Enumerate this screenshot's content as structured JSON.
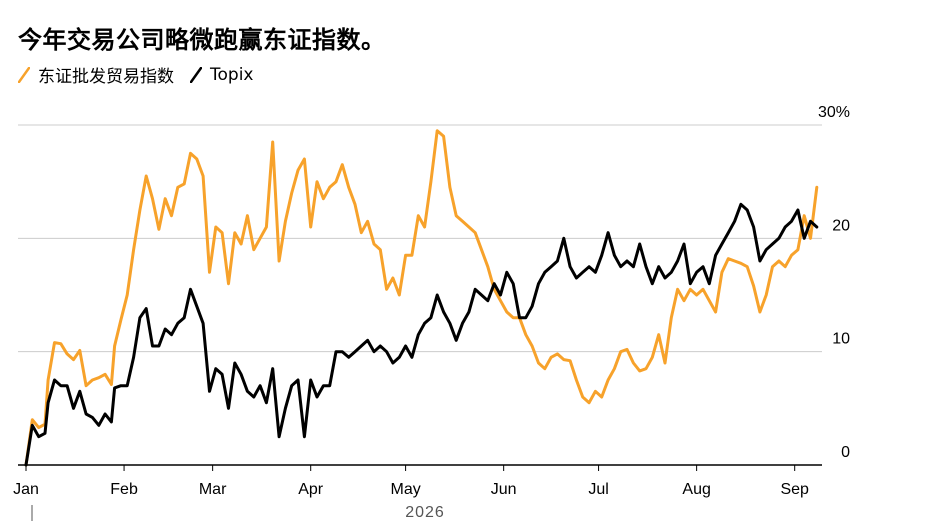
{
  "title": "今年交易公司略微跑赢东证指数。",
  "colors": {
    "trading": "#f7a22b",
    "topix": "#000000",
    "grid": "#cccccc",
    "axis": "#000000"
  },
  "chart_data": {
    "type": "line",
    "title": "今年交易公司略微跑赢东证指数。",
    "xlabel": "2026",
    "ylabel": "",
    "ylim": [
      0,
      30
    ],
    "yticks": [
      0,
      10,
      20,
      30
    ],
    "ytick_labels": [
      "0",
      "10",
      "20",
      "30%"
    ],
    "xlim": [
      "2026-01-01",
      "2026-09-09"
    ],
    "months": [
      {
        "label": "Jan",
        "date": "2026-01-01"
      },
      {
        "label": "Feb",
        "date": "2026-02-01"
      },
      {
        "label": "Mar",
        "date": "2026-03-01"
      },
      {
        "label": "Apr",
        "date": "2026-04-01"
      },
      {
        "label": "May",
        "date": "2026-05-01"
      },
      {
        "label": "Jun",
        "date": "2026-06-01"
      },
      {
        "label": "Jul",
        "date": "2026-07-01"
      },
      {
        "label": "Aug",
        "date": "2026-08-01"
      },
      {
        "label": "Sep",
        "date": "2026-09-01"
      }
    ],
    "year_label": "2026",
    "grid": "horizontal",
    "legend_position": "top-left",
    "series": [
      {
        "name": "东证批发贸易指数",
        "color": "#f7a22b",
        "points": [
          [
            "2026-01-01",
            0.0
          ],
          [
            "2026-01-03",
            4.0
          ],
          [
            "2026-01-05",
            3.3
          ],
          [
            "2026-01-07",
            3.6
          ],
          [
            "2026-01-08",
            7.5
          ],
          [
            "2026-01-10",
            10.8
          ],
          [
            "2026-01-12",
            10.7
          ],
          [
            "2026-01-14",
            9.8
          ],
          [
            "2026-01-16",
            9.3
          ],
          [
            "2026-01-18",
            10.1
          ],
          [
            "2026-01-20",
            7.0
          ],
          [
            "2026-01-22",
            7.5
          ],
          [
            "2026-01-24",
            7.7
          ],
          [
            "2026-01-26",
            8.0
          ],
          [
            "2026-01-28",
            7.1
          ],
          [
            "2026-01-29",
            10.5
          ],
          [
            "2026-01-31",
            12.8
          ],
          [
            "2026-02-02",
            15.0
          ],
          [
            "2026-02-04",
            19.0
          ],
          [
            "2026-02-06",
            22.5
          ],
          [
            "2026-02-08",
            25.5
          ],
          [
            "2026-02-10",
            23.5
          ],
          [
            "2026-02-12",
            20.8
          ],
          [
            "2026-02-14",
            23.5
          ],
          [
            "2026-02-16",
            22.0
          ],
          [
            "2026-02-18",
            24.5
          ],
          [
            "2026-02-20",
            24.8
          ],
          [
            "2026-02-22",
            27.5
          ],
          [
            "2026-02-24",
            27.0
          ],
          [
            "2026-02-26",
            25.5
          ],
          [
            "2026-02-28",
            17.0
          ],
          [
            "2026-03-02",
            21.0
          ],
          [
            "2026-03-04",
            20.5
          ],
          [
            "2026-03-06",
            16.0
          ],
          [
            "2026-03-08",
            20.5
          ],
          [
            "2026-03-10",
            19.5
          ],
          [
            "2026-03-12",
            22.0
          ],
          [
            "2026-03-14",
            19.0
          ],
          [
            "2026-03-16",
            20.0
          ],
          [
            "2026-03-18",
            21.0
          ],
          [
            "2026-03-20",
            28.5
          ],
          [
            "2026-03-22",
            18.0
          ],
          [
            "2026-03-24",
            21.5
          ],
          [
            "2026-03-26",
            24.0
          ],
          [
            "2026-03-28",
            26.0
          ],
          [
            "2026-03-30",
            27.0
          ],
          [
            "2026-04-01",
            21.0
          ],
          [
            "2026-04-03",
            25.0
          ],
          [
            "2026-04-05",
            23.5
          ],
          [
            "2026-04-07",
            24.5
          ],
          [
            "2026-04-09",
            25.0
          ],
          [
            "2026-04-11",
            26.5
          ],
          [
            "2026-04-13",
            24.5
          ],
          [
            "2026-04-15",
            23.0
          ],
          [
            "2026-04-17",
            20.5
          ],
          [
            "2026-04-19",
            21.5
          ],
          [
            "2026-04-21",
            19.5
          ],
          [
            "2026-04-23",
            19.0
          ],
          [
            "2026-04-25",
            15.5
          ],
          [
            "2026-04-27",
            16.5
          ],
          [
            "2026-04-29",
            15.0
          ],
          [
            "2026-05-01",
            18.5
          ],
          [
            "2026-05-03",
            18.5
          ],
          [
            "2026-05-05",
            22.0
          ],
          [
            "2026-05-07",
            21.0
          ],
          [
            "2026-05-09",
            25.0
          ],
          [
            "2026-05-11",
            29.5
          ],
          [
            "2026-05-13",
            29.0
          ],
          [
            "2026-05-15",
            24.5
          ],
          [
            "2026-05-17",
            22.0
          ],
          [
            "2026-05-19",
            21.5
          ],
          [
            "2026-05-21",
            21.0
          ],
          [
            "2026-05-23",
            20.5
          ],
          [
            "2026-05-25",
            19.0
          ],
          [
            "2026-05-27",
            17.5
          ],
          [
            "2026-05-29",
            15.5
          ],
          [
            "2026-05-31",
            14.5
          ],
          [
            "2026-06-02",
            13.5
          ],
          [
            "2026-06-04",
            13.0
          ],
          [
            "2026-06-06",
            13.0
          ],
          [
            "2026-06-08",
            11.5
          ],
          [
            "2026-06-10",
            10.5
          ],
          [
            "2026-06-12",
            9.0
          ],
          [
            "2026-06-14",
            8.5
          ],
          [
            "2026-06-16",
            9.5
          ],
          [
            "2026-06-18",
            9.8
          ],
          [
            "2026-06-20",
            9.3
          ],
          [
            "2026-06-22",
            9.2
          ],
          [
            "2026-06-24",
            7.5
          ],
          [
            "2026-06-26",
            6.0
          ],
          [
            "2026-06-28",
            5.5
          ],
          [
            "2026-06-30",
            6.5
          ],
          [
            "2026-07-02",
            6.0
          ],
          [
            "2026-07-04",
            7.5
          ],
          [
            "2026-07-06",
            8.5
          ],
          [
            "2026-07-08",
            10.0
          ],
          [
            "2026-07-10",
            10.2
          ],
          [
            "2026-07-12",
            9.0
          ],
          [
            "2026-07-14",
            8.3
          ],
          [
            "2026-07-16",
            8.5
          ],
          [
            "2026-07-18",
            9.5
          ],
          [
            "2026-07-20",
            11.5
          ],
          [
            "2026-07-22",
            9.0
          ],
          [
            "2026-07-24",
            13.0
          ],
          [
            "2026-07-26",
            15.5
          ],
          [
            "2026-07-28",
            14.5
          ],
          [
            "2026-07-30",
            15.5
          ],
          [
            "2026-08-01",
            15.0
          ],
          [
            "2026-08-03",
            15.5
          ],
          [
            "2026-08-05",
            14.5
          ],
          [
            "2026-08-07",
            13.5
          ],
          [
            "2026-08-09",
            17.0
          ],
          [
            "2026-08-11",
            18.2
          ],
          [
            "2026-08-13",
            18.0
          ],
          [
            "2026-08-15",
            17.8
          ],
          [
            "2026-08-17",
            17.5
          ],
          [
            "2026-08-19",
            15.8
          ],
          [
            "2026-08-21",
            13.5
          ],
          [
            "2026-08-23",
            15.0
          ],
          [
            "2026-08-25",
            17.5
          ],
          [
            "2026-08-27",
            18.0
          ],
          [
            "2026-08-29",
            17.5
          ],
          [
            "2026-08-31",
            18.5
          ],
          [
            "2026-09-02",
            19.0
          ],
          [
            "2026-09-04",
            22.0
          ],
          [
            "2026-09-06",
            20.0
          ],
          [
            "2026-09-08",
            24.5
          ]
        ]
      },
      {
        "name": "Topix",
        "color": "#000000",
        "points": [
          [
            "2026-01-01",
            0.0
          ],
          [
            "2026-01-03",
            3.5
          ],
          [
            "2026-01-05",
            2.5
          ],
          [
            "2026-01-07",
            2.8
          ],
          [
            "2026-01-08",
            5.5
          ],
          [
            "2026-01-10",
            7.5
          ],
          [
            "2026-01-12",
            7.0
          ],
          [
            "2026-01-14",
            7.0
          ],
          [
            "2026-01-16",
            5.0
          ],
          [
            "2026-01-18",
            6.5
          ],
          [
            "2026-01-20",
            4.5
          ],
          [
            "2026-01-22",
            4.2
          ],
          [
            "2026-01-24",
            3.5
          ],
          [
            "2026-01-26",
            4.5
          ],
          [
            "2026-01-28",
            3.8
          ],
          [
            "2026-01-29",
            6.8
          ],
          [
            "2026-01-31",
            7.0
          ],
          [
            "2026-02-02",
            7.0
          ],
          [
            "2026-02-04",
            9.5
          ],
          [
            "2026-02-06",
            13.0
          ],
          [
            "2026-02-08",
            13.8
          ],
          [
            "2026-02-10",
            10.5
          ],
          [
            "2026-02-12",
            10.5
          ],
          [
            "2026-02-14",
            12.0
          ],
          [
            "2026-02-16",
            11.5
          ],
          [
            "2026-02-18",
            12.5
          ],
          [
            "2026-02-20",
            13.0
          ],
          [
            "2026-02-22",
            15.5
          ],
          [
            "2026-02-24",
            14.0
          ],
          [
            "2026-02-26",
            12.5
          ],
          [
            "2026-02-28",
            6.5
          ],
          [
            "2026-03-02",
            8.5
          ],
          [
            "2026-03-04",
            8.0
          ],
          [
            "2026-03-06",
            5.0
          ],
          [
            "2026-03-08",
            9.0
          ],
          [
            "2026-03-10",
            8.0
          ],
          [
            "2026-03-12",
            6.5
          ],
          [
            "2026-03-14",
            6.0
          ],
          [
            "2026-03-16",
            7.0
          ],
          [
            "2026-03-18",
            5.5
          ],
          [
            "2026-03-20",
            8.5
          ],
          [
            "2026-03-22",
            2.5
          ],
          [
            "2026-03-24",
            5.0
          ],
          [
            "2026-03-26",
            7.0
          ],
          [
            "2026-03-28",
            7.5
          ],
          [
            "2026-03-30",
            2.5
          ],
          [
            "2026-04-01",
            7.5
          ],
          [
            "2026-04-03",
            6.0
          ],
          [
            "2026-04-05",
            7.0
          ],
          [
            "2026-04-07",
            7.0
          ],
          [
            "2026-04-09",
            10.0
          ],
          [
            "2026-04-11",
            10.0
          ],
          [
            "2026-04-13",
            9.5
          ],
          [
            "2026-04-15",
            10.0
          ],
          [
            "2026-04-17",
            10.5
          ],
          [
            "2026-04-19",
            11.0
          ],
          [
            "2026-04-21",
            10.0
          ],
          [
            "2026-04-23",
            10.5
          ],
          [
            "2026-04-25",
            10.0
          ],
          [
            "2026-04-27",
            9.0
          ],
          [
            "2026-04-29",
            9.5
          ],
          [
            "2026-05-01",
            10.5
          ],
          [
            "2026-05-03",
            9.5
          ],
          [
            "2026-05-05",
            11.5
          ],
          [
            "2026-05-07",
            12.5
          ],
          [
            "2026-05-09",
            13.0
          ],
          [
            "2026-05-11",
            15.0
          ],
          [
            "2026-05-13",
            13.5
          ],
          [
            "2026-05-15",
            12.5
          ],
          [
            "2026-05-17",
            11.0
          ],
          [
            "2026-05-19",
            12.5
          ],
          [
            "2026-05-21",
            13.5
          ],
          [
            "2026-05-23",
            15.5
          ],
          [
            "2026-05-25",
            15.0
          ],
          [
            "2026-05-27",
            14.5
          ],
          [
            "2026-05-29",
            16.0
          ],
          [
            "2026-05-31",
            15.0
          ],
          [
            "2026-06-02",
            17.0
          ],
          [
            "2026-06-04",
            16.0
          ],
          [
            "2026-06-06",
            13.0
          ],
          [
            "2026-06-08",
            13.0
          ],
          [
            "2026-06-10",
            14.0
          ],
          [
            "2026-06-12",
            16.0
          ],
          [
            "2026-06-14",
            17.0
          ],
          [
            "2026-06-16",
            17.5
          ],
          [
            "2026-06-18",
            18.0
          ],
          [
            "2026-06-20",
            20.0
          ],
          [
            "2026-06-22",
            17.5
          ],
          [
            "2026-06-24",
            16.5
          ],
          [
            "2026-06-26",
            17.0
          ],
          [
            "2026-06-28",
            17.5
          ],
          [
            "2026-06-30",
            17.0
          ],
          [
            "2026-07-02",
            18.5
          ],
          [
            "2026-07-04",
            20.5
          ],
          [
            "2026-07-06",
            18.5
          ],
          [
            "2026-07-08",
            17.5
          ],
          [
            "2026-07-10",
            18.0
          ],
          [
            "2026-07-12",
            17.5
          ],
          [
            "2026-07-14",
            19.5
          ],
          [
            "2026-07-16",
            17.5
          ],
          [
            "2026-07-18",
            16.0
          ],
          [
            "2026-07-20",
            17.5
          ],
          [
            "2026-07-22",
            16.5
          ],
          [
            "2026-07-24",
            17.0
          ],
          [
            "2026-07-26",
            18.0
          ],
          [
            "2026-07-28",
            19.5
          ],
          [
            "2026-07-30",
            16.0
          ],
          [
            "2026-08-01",
            17.0
          ],
          [
            "2026-08-03",
            17.5
          ],
          [
            "2026-08-05",
            16.0
          ],
          [
            "2026-08-07",
            18.5
          ],
          [
            "2026-08-09",
            19.5
          ],
          [
            "2026-08-11",
            20.5
          ],
          [
            "2026-08-13",
            21.5
          ],
          [
            "2026-08-15",
            23.0
          ],
          [
            "2026-08-17",
            22.5
          ],
          [
            "2026-08-19",
            21.0
          ],
          [
            "2026-08-21",
            18.0
          ],
          [
            "2026-08-23",
            19.0
          ],
          [
            "2026-08-25",
            19.5
          ],
          [
            "2026-08-27",
            20.0
          ],
          [
            "2026-08-29",
            21.0
          ],
          [
            "2026-08-31",
            21.5
          ],
          [
            "2026-09-02",
            22.5
          ],
          [
            "2026-09-04",
            20.0
          ],
          [
            "2026-09-06",
            21.5
          ],
          [
            "2026-09-08",
            21.0
          ]
        ]
      }
    ]
  }
}
